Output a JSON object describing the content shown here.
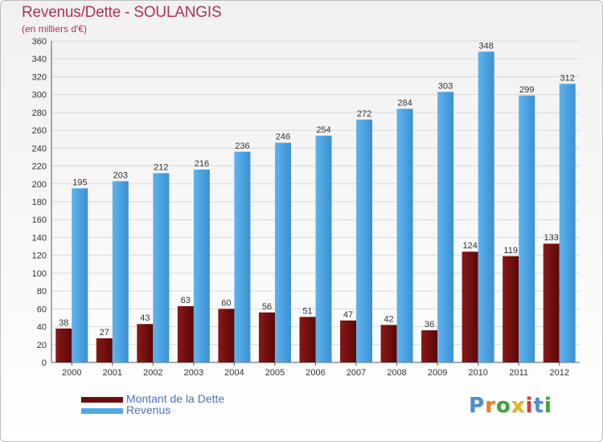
{
  "header": {
    "title": "Revenus/Dette - SOULANGIS",
    "subtitle": "(en milliers d'€)"
  },
  "legend": {
    "items": [
      {
        "label": "Montant de la Dette",
        "color": "#6b0d0d"
      },
      {
        "label": "Revenus",
        "color": "#4ea8e6"
      }
    ]
  },
  "logo": {
    "text": "Proxiti",
    "letters": [
      {
        "char": "P",
        "color": "#4a8fd6"
      },
      {
        "char": "r",
        "color": "#f07b1d"
      },
      {
        "char": "o",
        "color": "#3fa33f"
      },
      {
        "char": "x",
        "color": "#e8b21a"
      },
      {
        "char": "i",
        "color": "#d43a3a"
      },
      {
        "char": "t",
        "color": "#4a8fd6"
      },
      {
        "char": "i",
        "color": "#3fa33f"
      }
    ]
  },
  "chart_data": {
    "type": "bar",
    "title": "Revenus/Dette - SOULANGIS",
    "subtitle": "(en milliers d'€)",
    "categories": [
      "2000",
      "2001",
      "2002",
      "2003",
      "2004",
      "2005",
      "2006",
      "2007",
      "2008",
      "2009",
      "2010",
      "2011",
      "2012"
    ],
    "series": [
      {
        "name": "Montant de la Dette",
        "color": "#6b0d0d",
        "values": [
          38,
          27,
          43,
          63,
          60,
          56,
          51,
          47,
          42,
          36,
          124,
          119,
          133
        ]
      },
      {
        "name": "Revenus",
        "color": "#4ea8e6",
        "values": [
          195,
          203,
          212,
          216,
          236,
          246,
          254,
          272,
          284,
          303,
          348,
          299,
          312
        ]
      }
    ],
    "ylim": [
      0,
      360
    ],
    "yticks": [
      0,
      20,
      40,
      60,
      80,
      100,
      120,
      140,
      160,
      180,
      200,
      220,
      240,
      260,
      280,
      300,
      320,
      340,
      360
    ],
    "grid": true,
    "legend_position": "bottom-left"
  }
}
